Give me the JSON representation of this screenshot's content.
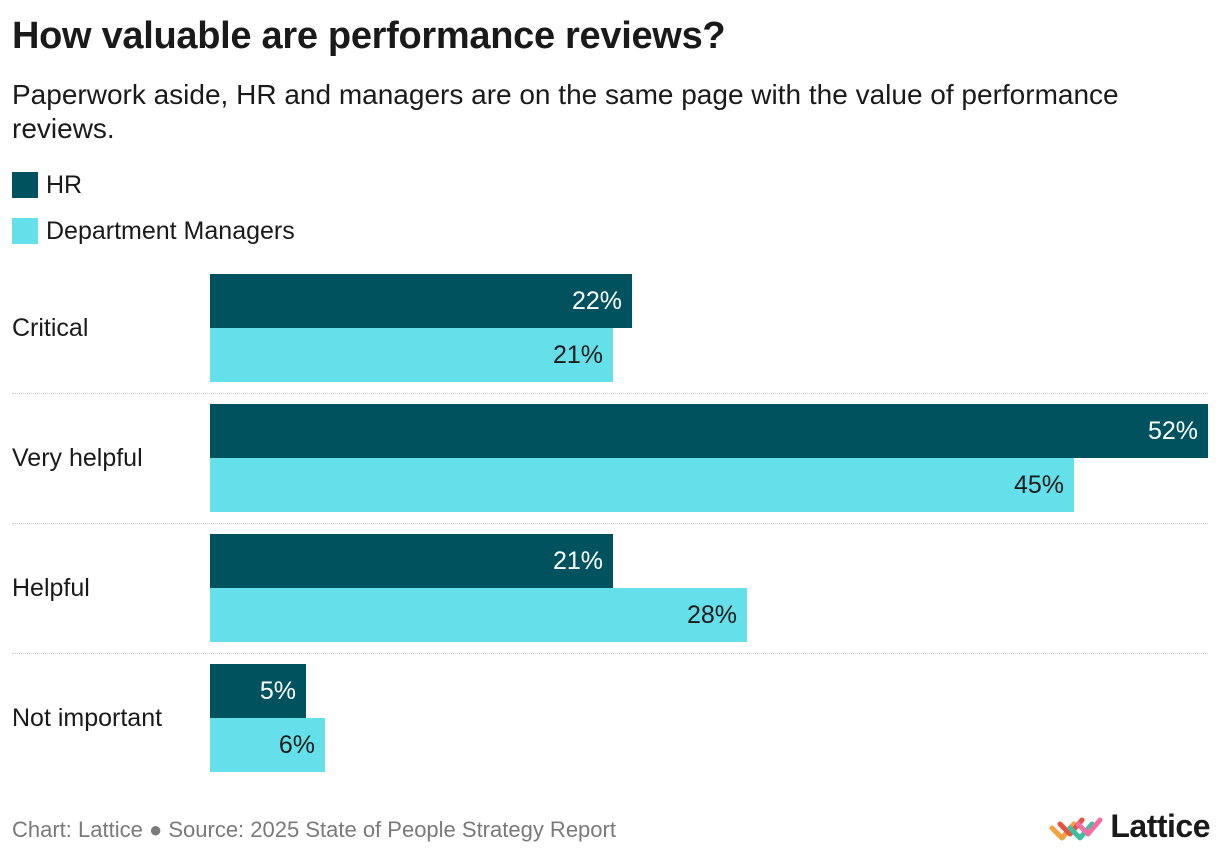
{
  "title": "How valuable are performance reviews?",
  "subtitle": "Paperwork aside, HR and managers are on the same page with the value of performance reviews.",
  "footer": {
    "text": "Chart: Lattice ● Source: 2025 State of People Strategy Report",
    "logo_text": "Lattice"
  },
  "colors": {
    "hr": "#00535e",
    "managers": "#63e0ea"
  },
  "chart_data": {
    "type": "bar",
    "orientation": "horizontal",
    "title": "How valuable are performance reviews?",
    "categories": [
      "Critical",
      "Very helpful",
      "Helpful",
      "Not important"
    ],
    "series": [
      {
        "name": "HR",
        "values": [
          22,
          52,
          21,
          5
        ],
        "labels": [
          "22%",
          "52%",
          "21%",
          "5%"
        ]
      },
      {
        "name": "Department Managers",
        "values": [
          21,
          45,
          28,
          6
        ],
        "labels": [
          "21%",
          "45%",
          "28%",
          "6%"
        ]
      }
    ],
    "xlim": [
      0,
      52
    ],
    "unit": "%",
    "legend": "top-left",
    "grid": false
  }
}
